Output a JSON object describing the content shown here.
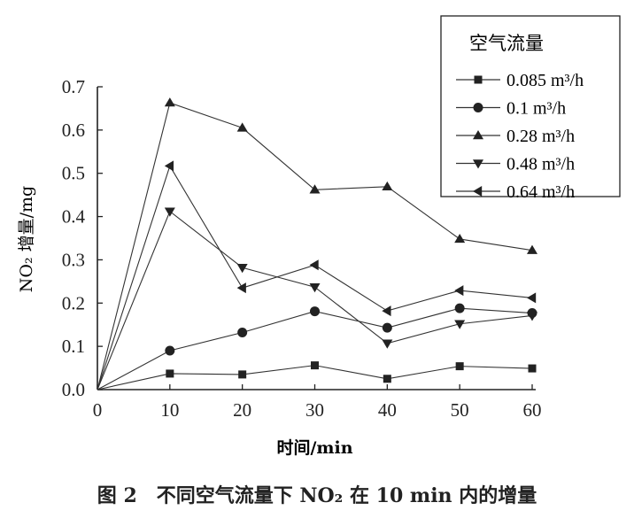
{
  "chart_data": {
    "type": "line",
    "title": "",
    "xlabel": "时间/min",
    "ylabel": "NO₂ 增量/mg",
    "xlim": [
      0,
      60
    ],
    "ylim": [
      0,
      0.7
    ],
    "xticks": [
      "0",
      "10",
      "20",
      "30",
      "40",
      "50",
      "60"
    ],
    "yticks": [
      "0.0",
      "0.1",
      "0.2",
      "0.3",
      "0.4",
      "0.5",
      "0.6",
      "0.7"
    ],
    "grid": false,
    "legend_title": "空气流量",
    "legend_position": "top-right",
    "x": [
      0,
      10,
      20,
      30,
      40,
      50,
      60
    ],
    "series": [
      {
        "name": "0.085 m³/h",
        "marker": "square",
        "values": [
          0,
          0.037,
          0.035,
          0.056,
          0.025,
          0.054,
          0.049
        ]
      },
      {
        "name": "0.1 m³/h",
        "marker": "circle",
        "values": [
          0,
          0.09,
          0.132,
          0.181,
          0.143,
          0.188,
          0.177
        ]
      },
      {
        "name": "0.28 m³/h",
        "marker": "triangle-up",
        "values": [
          0,
          0.663,
          0.605,
          0.462,
          0.469,
          0.348,
          0.322
        ]
      },
      {
        "name": "0.48 m³/h",
        "marker": "triangle-down",
        "values": [
          0,
          0.412,
          0.282,
          0.237,
          0.107,
          0.152,
          0.171
        ]
      },
      {
        "name": "0.64 m³/h",
        "marker": "triangle-left",
        "values": [
          0,
          0.517,
          0.235,
          0.288,
          0.182,
          0.229,
          0.212
        ]
      }
    ]
  },
  "caption": "图 2　不同空气流量下 NO₂ 在 10 min 内的增量",
  "colors": {
    "line": "#333333",
    "marker": "#222222"
  }
}
